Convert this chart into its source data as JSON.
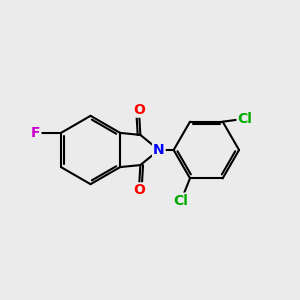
{
  "background_color": "#ebebeb",
  "bond_color": "#000000",
  "atom_colors": {
    "O": "#ff0000",
    "N": "#0000ff",
    "F": "#cc00cc",
    "Cl": "#00aa00",
    "C": "#000000"
  },
  "figsize": [
    3.0,
    3.0
  ],
  "dpi": 100
}
